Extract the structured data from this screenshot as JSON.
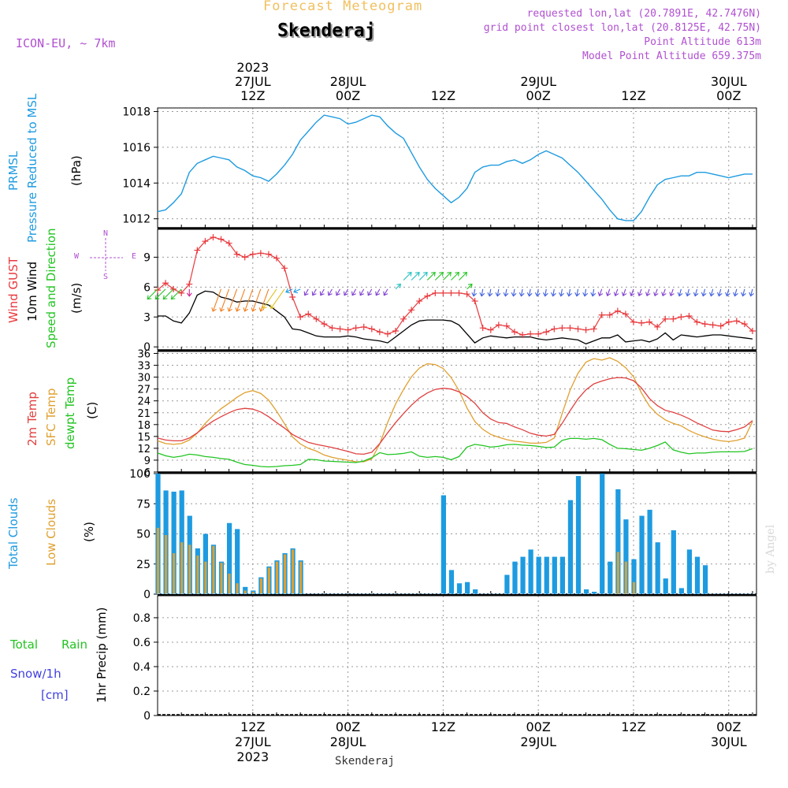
{
  "header": {
    "title": "Forecast Meteogram",
    "station": "Skenderaj",
    "model": "ICON-EU, ~ 7km",
    "requested": "requested lon,lat (20.7891E, 42.7476N)",
    "gridpoint": "grid point closest lon,lat (20.8125E, 42.75N)",
    "point_alt": "Point Altitude 613m",
    "model_alt": "Model Point Altitude 659.375m",
    "footer_station": "Skenderaj",
    "credit": "by Angel"
  },
  "time_axis": {
    "top_labels": [
      {
        "l1": "2023",
        "l2": "27JUL",
        "l3": "12Z",
        "h": 12
      },
      {
        "l1": "",
        "l2": "28JUL",
        "l3": "00Z",
        "h": 24
      },
      {
        "l1": "",
        "l2": "",
        "l3": "12Z",
        "h": 36
      },
      {
        "l1": "",
        "l2": "29JUL",
        "l3": "00Z",
        "h": 48
      },
      {
        "l1": "",
        "l2": "",
        "l3": "12Z",
        "h": 60
      },
      {
        "l1": "",
        "l2": "30JUL",
        "l3": "00Z",
        "h": 72
      }
    ],
    "bottom_labels": [
      {
        "l1": "12Z",
        "l2": "27JUL",
        "l3": "2023",
        "h": 12
      },
      {
        "l1": "00Z",
        "l2": "28JUL",
        "l3": "",
        "h": 24
      },
      {
        "l1": "12Z",
        "l2": "",
        "l3": "",
        "h": 36
      },
      {
        "l1": "00Z",
        "l2": "29JUL",
        "l3": "",
        "h": 48
      },
      {
        "l1": "12Z",
        "l2": "",
        "l3": "",
        "h": 60
      },
      {
        "l1": "00Z",
        "l2": "30JUL",
        "l3": "",
        "h": 72
      }
    ]
  },
  "panel_labels": {
    "pressure": [
      "PRMSL",
      "Pressure Reduced to MSL",
      "(hPa)"
    ],
    "wind": [
      "Wind GUST",
      "10m Wind",
      "Speed and Direction",
      "(m/s)"
    ],
    "compass": [
      "N",
      "W",
      "E",
      "S"
    ],
    "temp": [
      "2m Temp",
      "SFC Temp",
      "dewpt Temp",
      "(C)"
    ],
    "clouds": [
      "Total Clouds",
      "Low Clouds",
      "(%)"
    ],
    "precip": [
      "Total",
      "Rain",
      "Snow/1h",
      "[cm]",
      "1hr Precip (mm)"
    ]
  },
  "colors": {
    "pressure": "#1e9be0",
    "gust": "#e8383c",
    "wind": "#000000",
    "t2m": "#e04040",
    "sfc": "#e0a030",
    "dewpt": "#22c422",
    "total_clouds": "#1e9be0",
    "low_clouds": "#e0a030",
    "label_purple": "#b050d0",
    "label_green": "#22c422",
    "label_blue": "#4040e0",
    "title_orange": "#f0c060"
  },
  "chart_data": [
    {
      "type": "line",
      "name": "pressure",
      "ylim": [
        1011.5,
        1018.2
      ],
      "yticks": [
        1012,
        1014,
        1016,
        1018
      ],
      "x": [
        0,
        1,
        2,
        3,
        4,
        5,
        6,
        7,
        8,
        9,
        10,
        11,
        12,
        13,
        14,
        15,
        16,
        17,
        18,
        19,
        20,
        21,
        22,
        23,
        24,
        25,
        26,
        27,
        28,
        29,
        30,
        31,
        32,
        33,
        34,
        35,
        36,
        37,
        38,
        39,
        40,
        41,
        42,
        43,
        44,
        45,
        46,
        47,
        48,
        49,
        50,
        51,
        52,
        53,
        54,
        55,
        56,
        57,
        58,
        59,
        60,
        61,
        62,
        63,
        64,
        65,
        66,
        67,
        68,
        69,
        70,
        71,
        72,
        73,
        74,
        75
      ],
      "series": [
        {
          "values": [
            1012.4,
            1012.5,
            1012.9,
            1013.4,
            1014.6,
            1015.1,
            1015.3,
            1015.5,
            1015.4,
            1015.3,
            1014.9,
            1014.7,
            1014.4,
            1014.3,
            1014.1,
            1014.5,
            1015.0,
            1015.6,
            1016.4,
            1016.9,
            1017.4,
            1017.8,
            1017.7,
            1017.6,
            1017.3,
            1017.4,
            1017.6,
            1017.8,
            1017.7,
            1017.2,
            1016.8,
            1016.5,
            1015.7,
            1014.9,
            1014.2,
            1013.7,
            1013.3,
            1012.9,
            1013.2,
            1013.7,
            1014.6,
            1014.9,
            1015.0,
            1015.0,
            1015.2,
            1015.3,
            1015.1,
            1015.3,
            1015.6,
            1015.8,
            1015.6,
            1015.4,
            1015.0,
            1014.6,
            1014.1,
            1013.6,
            1013.1,
            1012.5,
            1012.0,
            1011.9,
            1011.9,
            1012.4,
            1013.2,
            1013.9,
            1014.2,
            1014.3,
            1014.4,
            1014.4,
            1014.6,
            1014.6,
            1014.5,
            1014.4,
            1014.3,
            1014.4,
            1014.5,
            1014.5
          ]
        }
      ]
    },
    {
      "type": "line",
      "name": "wind",
      "ylim": [
        -0.3,
        11.8
      ],
      "yticks": [
        0,
        3,
        6,
        9
      ],
      "x": [
        0,
        1,
        2,
        3,
        4,
        5,
        6,
        7,
        8,
        9,
        10,
        11,
        12,
        13,
        14,
        15,
        16,
        17,
        18,
        19,
        20,
        21,
        22,
        23,
        24,
        25,
        26,
        27,
        28,
        29,
        30,
        31,
        32,
        33,
        34,
        35,
        36,
        37,
        38,
        39,
        40,
        41,
        42,
        43,
        44,
        45,
        46,
        47,
        48,
        49,
        50,
        51,
        52,
        53,
        54,
        55,
        56,
        57,
        58,
        59,
        60,
        61,
        62,
        63,
        64,
        65,
        66,
        67,
        68,
        69,
        70,
        71,
        72,
        73,
        74,
        75
      ],
      "series": [
        {
          "values": [
            5.7,
            6.4,
            5.8,
            5.4,
            6.3,
            9.7,
            10.6,
            11.0,
            10.8,
            10.4,
            9.3,
            9.0,
            9.3,
            9.4,
            9.3,
            8.9,
            7.9,
            5.0,
            3.0,
            3.3,
            2.8,
            2.3,
            1.9,
            1.8,
            1.7,
            1.9,
            2.0,
            1.8,
            1.5,
            1.3,
            1.6,
            2.8,
            3.7,
            4.6,
            5.1,
            5.4,
            5.4,
            5.4,
            5.4,
            5.3,
            4.6,
            1.9,
            1.7,
            2.2,
            2.1,
            1.5,
            1.2,
            1.3,
            1.3,
            1.5,
            1.8,
            1.9,
            1.9,
            1.8,
            1.7,
            1.8,
            3.2,
            3.2,
            3.6,
            3.3,
            2.5,
            2.4,
            2.5,
            2.0,
            2.8,
            2.8,
            3.0,
            3.1,
            2.5,
            2.3,
            2.2,
            2.1,
            2.5,
            2.6,
            2.3,
            1.6
          ]
        },
        {
          "values": [
            3.1,
            3.1,
            2.6,
            2.4,
            3.4,
            5.2,
            5.6,
            5.5,
            5.0,
            4.8,
            4.5,
            4.6,
            4.6,
            4.4,
            4.2,
            3.6,
            3.0,
            1.8,
            1.7,
            1.4,
            1.1,
            1.0,
            1.0,
            1.0,
            1.1,
            1.0,
            0.8,
            0.7,
            0.6,
            0.4,
            1.0,
            1.6,
            2.2,
            2.6,
            2.7,
            2.7,
            2.7,
            2.6,
            2.2,
            1.3,
            0.4,
            0.9,
            1.1,
            1.0,
            0.9,
            1.0,
            1.0,
            1.0,
            0.8,
            0.7,
            0.8,
            0.9,
            0.8,
            0.7,
            0.3,
            0.6,
            0.9,
            0.9,
            1.2,
            0.5,
            0.6,
            0.7,
            0.5,
            0.8,
            1.4,
            0.7,
            1.2,
            1.1,
            1.0,
            1.1,
            1.2,
            1.2,
            1.1,
            1.0,
            0.9,
            0.8
          ]
        }
      ]
    },
    {
      "type": "line",
      "name": "temperature",
      "ylim": [
        6,
        36.5
      ],
      "yticks": [
        6,
        9,
        12,
        15,
        18,
        21,
        24,
        27,
        30,
        33,
        36
      ],
      "x": [
        0,
        1,
        2,
        3,
        4,
        5,
        6,
        7,
        8,
        9,
        10,
        11,
        12,
        13,
        14,
        15,
        16,
        17,
        18,
        19,
        20,
        21,
        22,
        23,
        24,
        25,
        26,
        27,
        28,
        29,
        30,
        31,
        32,
        33,
        34,
        35,
        36,
        37,
        38,
        39,
        40,
        41,
        42,
        43,
        44,
        45,
        46,
        47,
        48,
        49,
        50,
        51,
        52,
        53,
        54,
        55,
        56,
        57,
        58,
        59,
        60,
        61,
        62,
        63,
        64,
        65,
        66,
        67,
        68,
        69,
        70,
        71,
        72,
        73,
        74,
        75
      ],
      "series": [
        {
          "values": [
            14.6,
            14.1,
            13.9,
            13.9,
            14.6,
            15.9,
            17.5,
            18.9,
            20.0,
            21.0,
            21.8,
            22.1,
            21.9,
            21.2,
            20.0,
            18.5,
            17.1,
            15.5,
            14.5,
            13.5,
            13.0,
            12.6,
            12.2,
            11.7,
            11.2,
            10.6,
            10.5,
            11.0,
            13.2,
            15.9,
            18.5,
            20.8,
            22.9,
            24.7,
            26.0,
            26.9,
            27.2,
            27.0,
            26.3,
            25.1,
            23.4,
            21.0,
            19.4,
            18.5,
            18.3,
            17.4,
            16.7,
            15.8,
            15.3,
            15.1,
            15.5,
            18.3,
            21.5,
            24.5,
            26.8,
            28.3,
            29.0,
            29.6,
            29.9,
            29.8,
            29.1,
            27.3,
            24.6,
            22.8,
            21.6,
            21.1,
            20.4,
            19.5,
            18.4,
            17.5,
            16.6,
            16.3,
            16.2,
            16.7,
            17.4,
            19.0
          ]
        },
        {
          "values": [
            13.9,
            13.2,
            13.0,
            13.2,
            14.1,
            15.8,
            18.3,
            20.3,
            22.0,
            23.4,
            24.9,
            26.1,
            26.6,
            25.9,
            24.2,
            21.4,
            18.2,
            14.9,
            13.1,
            12.0,
            11.3,
            10.3,
            9.7,
            9.3,
            9.0,
            8.6,
            8.6,
            9.3,
            13.1,
            18.5,
            23.2,
            26.9,
            30.1,
            32.3,
            33.4,
            33.2,
            32.2,
            29.9,
            26.6,
            22.2,
            18.8,
            16.8,
            15.5,
            14.8,
            14.2,
            13.8,
            13.6,
            13.3,
            13.3,
            13.5,
            14.6,
            20.8,
            26.7,
            31.0,
            33.8,
            34.7,
            34.3,
            34.9,
            34.0,
            32.4,
            30.1,
            26.0,
            22.7,
            20.6,
            19.2,
            18.3,
            17.7,
            16.5,
            15.6,
            14.9,
            14.3,
            13.9,
            13.7,
            14.0,
            14.6,
            18.8
          ]
        },
        {
          "values": [
            10.8,
            10.1,
            9.7,
            10.0,
            10.5,
            10.3,
            9.9,
            9.7,
            9.4,
            9.2,
            8.5,
            7.9,
            7.7,
            7.4,
            7.3,
            7.4,
            7.6,
            7.7,
            7.9,
            9.2,
            9.1,
            8.8,
            8.7,
            8.6,
            8.5,
            8.4,
            8.8,
            9.6,
            10.9,
            10.4,
            10.5,
            10.7,
            11.1,
            10.0,
            9.7,
            9.9,
            9.7,
            9.1,
            9.9,
            12.3,
            13.0,
            12.7,
            12.3,
            12.5,
            12.9,
            13.0,
            12.8,
            12.7,
            12.5,
            12.2,
            12.3,
            14.0,
            14.5,
            14.5,
            14.3,
            14.5,
            14.2,
            13.0,
            12.0,
            11.9,
            11.7,
            11.5,
            12.0,
            12.7,
            13.6,
            11.6,
            11.0,
            10.6,
            10.8,
            10.8,
            11.0,
            11.1,
            11.1,
            11.1,
            11.2,
            11.9
          ]
        }
      ]
    },
    {
      "type": "bar",
      "name": "clouds",
      "ylim": [
        0,
        100
      ],
      "yticks": [
        0,
        25,
        50,
        75,
        100
      ],
      "x": [
        0,
        1,
        2,
        3,
        4,
        5,
        6,
        7,
        8,
        9,
        10,
        11,
        12,
        13,
        14,
        15,
        16,
        17,
        18,
        19,
        20,
        21,
        22,
        23,
        24,
        25,
        26,
        27,
        28,
        29,
        30,
        31,
        32,
        33,
        34,
        35,
        36,
        37,
        38,
        39,
        40,
        41,
        42,
        43,
        44,
        45,
        46,
        47,
        48,
        49,
        50,
        51,
        52,
        53,
        54,
        55,
        56,
        57,
        58,
        59,
        60,
        61,
        62,
        63,
        64,
        65,
        66,
        67,
        68,
        69,
        70,
        71,
        72,
        73,
        74,
        75
      ],
      "series": [
        {
          "values": [
            100,
            86,
            85,
            86,
            65,
            38,
            50,
            41,
            27,
            59,
            54,
            6,
            3,
            14,
            23,
            28,
            34,
            38,
            28,
            0,
            0,
            0,
            0,
            0,
            0,
            0,
            0,
            0,
            0,
            0,
            0,
            0,
            0,
            0,
            0,
            0,
            82,
            20,
            9,
            10,
            4,
            0,
            0,
            0,
            16,
            27,
            31,
            37,
            31,
            31,
            31,
            31,
            78,
            98,
            4,
            2,
            100,
            27,
            87,
            62,
            29,
            65,
            70,
            43,
            13,
            53,
            5,
            37,
            31,
            24,
            0,
            0,
            0,
            0,
            0,
            0
          ]
        },
        {
          "values": [
            55,
            49,
            34,
            43,
            41,
            32,
            27,
            40,
            26,
            17,
            9,
            3,
            2,
            13,
            22,
            27,
            33,
            37,
            27,
            0,
            0,
            0,
            0,
            0,
            0,
            0,
            0,
            0,
            0,
            0,
            0,
            0,
            0,
            0,
            0,
            0,
            0,
            0,
            0,
            0,
            0,
            0,
            0,
            0,
            0,
            0,
            0,
            0,
            0,
            0,
            0,
            0,
            0,
            0,
            0,
            0,
            0,
            0,
            35,
            27,
            10,
            0,
            0,
            0,
            0,
            0,
            0,
            0,
            0,
            0,
            0,
            0,
            0,
            0,
            0,
            0
          ]
        }
      ]
    },
    {
      "type": "bar",
      "name": "precip",
      "ylim": [
        0,
        0.98
      ],
      "yticks": [
        0,
        0.2,
        0.4,
        0.6,
        0.8
      ],
      "x": [],
      "series": [
        {
          "values": []
        }
      ]
    }
  ]
}
